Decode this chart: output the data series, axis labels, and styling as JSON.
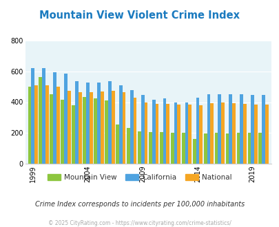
{
  "title": "Mountain View Violent Crime Index",
  "title_color": "#1a7abf",
  "years": [
    1999,
    2000,
    2001,
    2002,
    2003,
    2004,
    2005,
    2006,
    2007,
    2008,
    2009,
    2010,
    2011,
    2012,
    2013,
    2014,
    2015,
    2016,
    2017,
    2018,
    2019,
    2020
  ],
  "mountain_view": [
    500,
    565,
    450,
    415,
    380,
    435,
    425,
    410,
    255,
    230,
    210,
    205,
    205,
    200,
    200,
    160,
    195,
    200,
    195,
    200,
    200,
    200
  ],
  "california": [
    622,
    620,
    595,
    585,
    535,
    530,
    530,
    535,
    510,
    480,
    445,
    415,
    425,
    400,
    400,
    430,
    450,
    450,
    450,
    450,
    445,
    445
  ],
  "national": [
    510,
    510,
    500,
    475,
    465,
    465,
    470,
    475,
    465,
    430,
    400,
    390,
    390,
    385,
    385,
    380,
    395,
    400,
    395,
    390,
    385,
    385
  ],
  "mv_color": "#8dc63f",
  "ca_color": "#4fa3e0",
  "nat_color": "#f5a623",
  "bg_color": "#e8f4f8",
  "ylim": [
    0,
    800
  ],
  "yticks": [
    0,
    200,
    400,
    600,
    800
  ],
  "xtick_years": [
    1999,
    2004,
    2009,
    2014,
    2019
  ],
  "legend_labels": [
    "Mountain View",
    "California",
    "National"
  ],
  "subtitle": "Crime Index corresponds to incidents per 100,000 inhabitants",
  "footer": "© 2025 CityRating.com - https://www.cityrating.com/crime-statistics/",
  "subtitle_color": "#333333",
  "footer_color": "#aaaaaa"
}
